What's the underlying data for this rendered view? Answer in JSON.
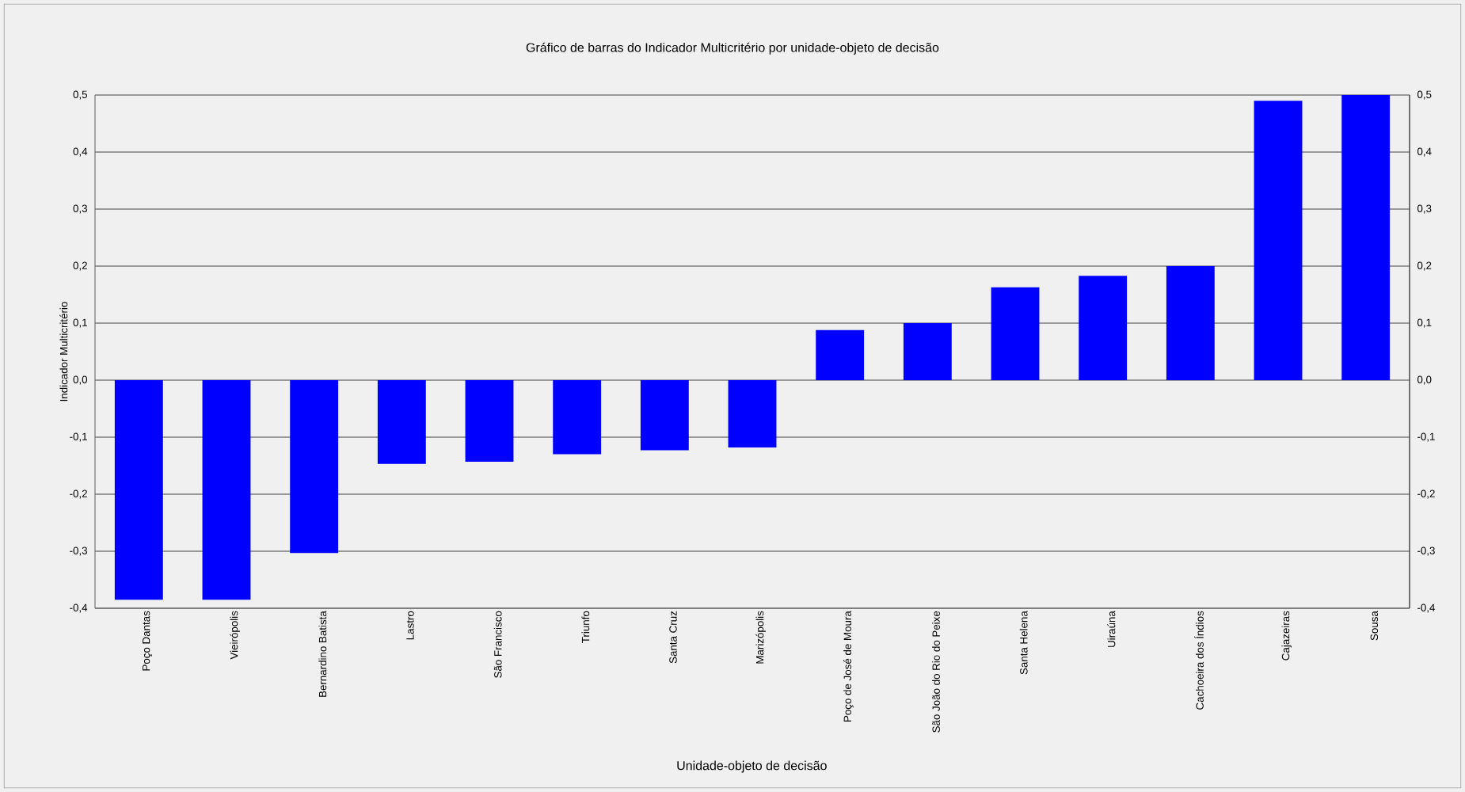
{
  "chart_data": {
    "type": "bar",
    "title": "Gráfico de barras do Indicador Multicritério por unidade-objeto de decisão",
    "xlabel": "Unidade-objeto de decisão",
    "ylabel": "Indicador Multicritério",
    "categories": [
      "Poço Dantas",
      "Vieirópolis",
      "Bernardino Batista",
      "Lastro",
      "São Francisco",
      "Triunfo",
      "Santa Cruz",
      "Marizópolis",
      "Poço de José de Moura",
      "São João do Rio do Peixe",
      "Santa Helena",
      "Uiraúna",
      "Cachoeira dos Índios",
      "Cajazeiras",
      "Sousa"
    ],
    "values": [
      -0.385,
      -0.385,
      -0.303,
      -0.147,
      -0.143,
      -0.13,
      -0.123,
      -0.118,
      0.088,
      0.1,
      0.163,
      0.183,
      0.2,
      0.49,
      0.5
    ],
    "color": "#0000ff",
    "grid": "y",
    "ylim": [
      -0.4,
      0.5
    ],
    "yticks": [
      {
        "value": -0.4,
        "label": "-0,4"
      },
      {
        "value": -0.3,
        "label": "-0,3"
      },
      {
        "value": -0.2,
        "label": "-0,2"
      },
      {
        "value": -0.1,
        "label": "-0,1"
      },
      {
        "value": 0,
        "label": "0,0"
      },
      {
        "value": 0.1,
        "label": "0,1"
      },
      {
        "value": 0.2,
        "label": "0,2"
      },
      {
        "value": 0.3,
        "label": "0,3"
      },
      {
        "value": 0.4,
        "label": "0,4"
      },
      {
        "value": 0.5,
        "label": "0,5"
      }
    ],
    "y2lim": [
      -0.4,
      0.5
    ],
    "y2ticks": [
      {
        "value": -0.4,
        "label": "-0,4"
      },
      {
        "value": -0.3,
        "label": "-0,3"
      },
      {
        "value": -0.2,
        "label": "-0,2"
      },
      {
        "value": -0.1,
        "label": "-0,1"
      },
      {
        "value": 0,
        "label": "0,0"
      },
      {
        "value": 0.1,
        "label": "0,1"
      },
      {
        "value": 0.2,
        "label": "0,2"
      },
      {
        "value": 0.3,
        "label": "0,3"
      },
      {
        "value": 0.4,
        "label": "0,4"
      },
      {
        "value": 0.5,
        "label": "0,5"
      }
    ]
  }
}
